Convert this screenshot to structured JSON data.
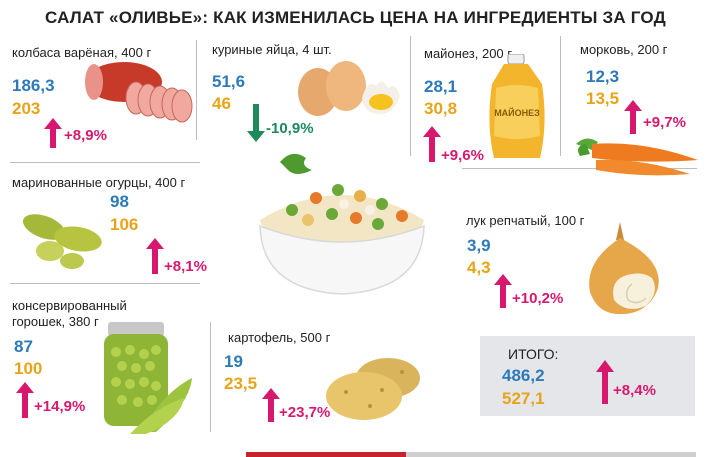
{
  "title": "САЛАТ «ОЛИВЬЕ»: КАК ИЗМЕНИЛАСЬ ЦЕНА НА ИНГРЕДИЕНТЫ ЗА ГОД",
  "colors": {
    "old_price": "#2e7ab8",
    "new_price": "#e8a418",
    "increase": "#d6196f",
    "decrease": "#1e8a5a"
  },
  "chart_data": {
    "type": "table",
    "title": "САЛАТ «ОЛИВЬЕ»: КАК ИЗМЕНИЛАСЬ ЦЕНА НА ИНГРЕДИЕНТЫ ЗА ГОД",
    "rows": [
      {
        "name": "колбаса варёная, 400 г",
        "old": "186,3",
        "new": "203",
        "change": "+8,9%",
        "direction": "up",
        "icon": "sausage-icon"
      },
      {
        "name": "куриные яйца, 4 шт.",
        "old": "51,6",
        "new": "46",
        "change": "-10,9%",
        "direction": "down",
        "icon": "eggs-icon"
      },
      {
        "name": "майонез, 200 г",
        "old": "28,1",
        "new": "30,8",
        "change": "+9,6%",
        "direction": "up",
        "icon": "mayonnaise-icon",
        "pack_text": "МАЙОНЕЗ"
      },
      {
        "name": "морковь, 200 г",
        "old": "12,3",
        "new": "13,5",
        "change": "+9,7%",
        "direction": "up",
        "icon": "carrot-icon"
      },
      {
        "name": "маринованные огурцы, 400 г",
        "old": "98",
        "new": "106",
        "change": "+8,1%",
        "direction": "up",
        "icon": "pickles-icon"
      },
      {
        "name": "лук репчатый, 100 г",
        "old": "3,9",
        "new": "4,3",
        "change": "+10,2%",
        "direction": "up",
        "icon": "onion-icon"
      },
      {
        "name": "консервированный горошек, 380 г",
        "name_lines": [
          "консервированный",
          "горошек, 380 г"
        ],
        "old": "87",
        "new": "100",
        "change": "+14,9%",
        "direction": "up",
        "icon": "peas-jar-icon"
      },
      {
        "name": "картофель, 500 г",
        "old": "19",
        "new": "23,5",
        "change": "+23,7%",
        "direction": "up",
        "icon": "potato-icon"
      }
    ],
    "total": {
      "label": "ИТОГО:",
      "old": "486,2",
      "new": "527,1",
      "change": "+8,4%",
      "direction": "up"
    }
  }
}
